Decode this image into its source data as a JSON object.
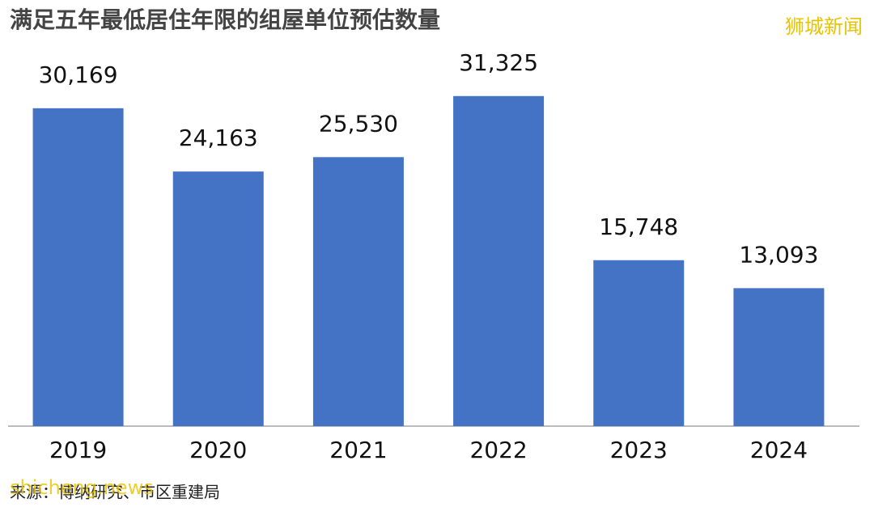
{
  "chart_data": {
    "type": "bar",
    "title": "满足五年最低居住年限的组屋单位预估数量",
    "brand": "狮城新闻",
    "watermark": "shicheng.news",
    "source": "来源：博纳研究、市区重建局",
    "categories": [
      "2019",
      "2020",
      "2021",
      "2022",
      "2023",
      "2024"
    ],
    "values": [
      30169,
      24163,
      25530,
      31325,
      15748,
      13093
    ],
    "value_labels": [
      "30,169",
      "24,163",
      "25,530",
      "31,325",
      "15,748",
      "13,093"
    ],
    "color": "#4472c4",
    "ylim": [
      0,
      32000
    ]
  }
}
